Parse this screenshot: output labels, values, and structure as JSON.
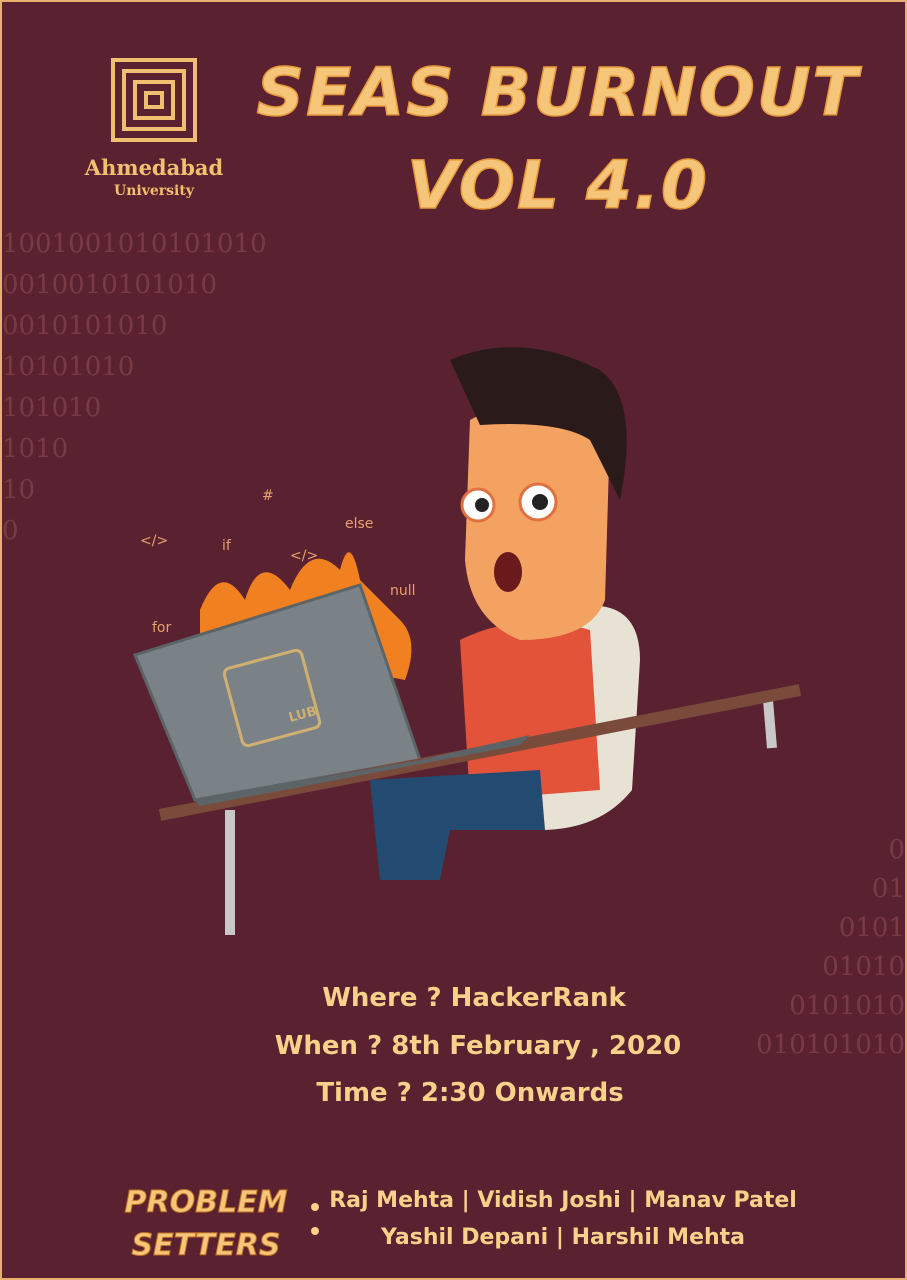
{
  "logo": {
    "name": "Ahmedabad",
    "subtitle": "University"
  },
  "title": {
    "line1": "SEAS BURNOUT",
    "line2": "VOL 4.0"
  },
  "binary_left": [
    "1001001010101010",
    "0010010101010",
    "0010101010",
    "10101010",
    "101010",
    "1010",
    "10",
    "0"
  ],
  "binary_right": [
    "0",
    "01",
    "0101",
    "01010",
    "0101010",
    "010101010"
  ],
  "illustration": {
    "code_symbols": [
      "</>",
      "#",
      "if",
      "</>",
      "else",
      "null",
      "for"
    ],
    "laptop_logo": "LUB"
  },
  "details": [
    "Where ? HackerRank",
    "When ? 8th February , 2020",
    "Time ? 2:30 Onwards"
  ],
  "problem_setters": {
    "label": [
      "PROBLEM",
      "SETTERS"
    ],
    "names": [
      "Raj Mehta | Vidish Joshi | Manav Patel",
      "Yashil Depani | Harshil Mehta"
    ]
  }
}
